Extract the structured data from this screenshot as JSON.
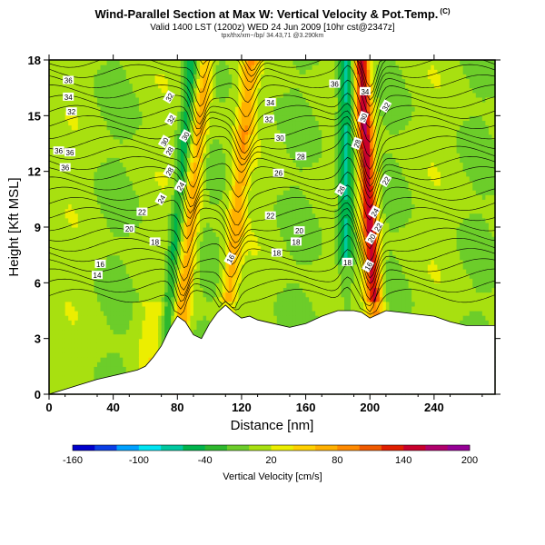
{
  "chart_data": {
    "type": "heatmap",
    "title": "Wind-Parallel Section at Max W: Vertical Velocity & Pot.Temp.",
    "title_mark": "(C)",
    "subtitle": "Valid 1400 LST (1200z) WED 24 Jun 2009 [10hr cst@2347z]",
    "info_line": "tpx/thx/xm~/bp/ 34.43,71 @3.290km",
    "xlabel": "Distance [nm]",
    "ylabel": "Height [Kft MSL]",
    "xlim": [
      0,
      278
    ],
    "ylim": [
      0,
      18
    ],
    "xticks": [
      0,
      40,
      80,
      120,
      160,
      200,
      240
    ],
    "yticks": [
      0,
      3,
      6,
      9,
      12,
      15,
      18
    ],
    "colorbar": {
      "label": "Vertical Velocity [cm/s]",
      "min": -160,
      "max": 200,
      "tick_labels": [
        -160,
        -100,
        -40,
        20,
        80,
        140,
        200
      ],
      "colors": [
        "#0000cc",
        "#0a3ee6",
        "#00a0ff",
        "#00e4f2",
        "#00c8a0",
        "#00b44c",
        "#2eb82e",
        "#6ccd2a",
        "#a8e010",
        "#ecee00",
        "#ffd000",
        "#ffb000",
        "#ff8a00",
        "#f05a00",
        "#e01e00",
        "#c8002c",
        "#b0006c",
        "#960096"
      ]
    },
    "theta_contour_labels": [
      "36",
      "34",
      "32",
      "36",
      "36",
      "22",
      "20",
      "18",
      "16",
      "14",
      "36",
      "32",
      "30",
      "28",
      "24",
      "34",
      "32",
      "30",
      "28",
      "26",
      "22",
      "18",
      "16",
      "34",
      "32",
      "30",
      "28",
      "26",
      "24",
      "22",
      "20",
      "18",
      "36",
      "32",
      "30",
      "28",
      "24",
      "22",
      "20",
      "18",
      "16"
    ],
    "updraft_bands_nm": [
      {
        "center": 84,
        "peak_cm_s": 70
      },
      {
        "center": 113,
        "peak_cm_s": 65
      },
      {
        "center": 202,
        "peak_cm_s": 150
      }
    ],
    "downdraft_bands_nm": [
      {
        "center": 76,
        "peak_cm_s": -55
      },
      {
        "center": 185,
        "peak_cm_s": -80
      }
    ],
    "terrain_kft": {
      "x": [
        0,
        30,
        40,
        50,
        55,
        60,
        65,
        70,
        75,
        80,
        85,
        90,
        95,
        100,
        105,
        110,
        115,
        120,
        125,
        130,
        140,
        150,
        160,
        170,
        180,
        190,
        195,
        200,
        205,
        210,
        220,
        230,
        240,
        250,
        260,
        270,
        278
      ],
      "y": [
        0,
        0.8,
        1.0,
        1.2,
        1.3,
        1.5,
        2.0,
        2.6,
        3.5,
        4.2,
        3.9,
        3.2,
        3.0,
        3.8,
        4.4,
        4.8,
        4.4,
        4.1,
        4.2,
        4.0,
        3.8,
        3.6,
        3.8,
        4.2,
        4.5,
        4.5,
        4.4,
        4.1,
        4.3,
        4.5,
        4.4,
        4.3,
        4.2,
        3.9,
        3.7,
        3.7,
        3.7
      ]
    }
  }
}
